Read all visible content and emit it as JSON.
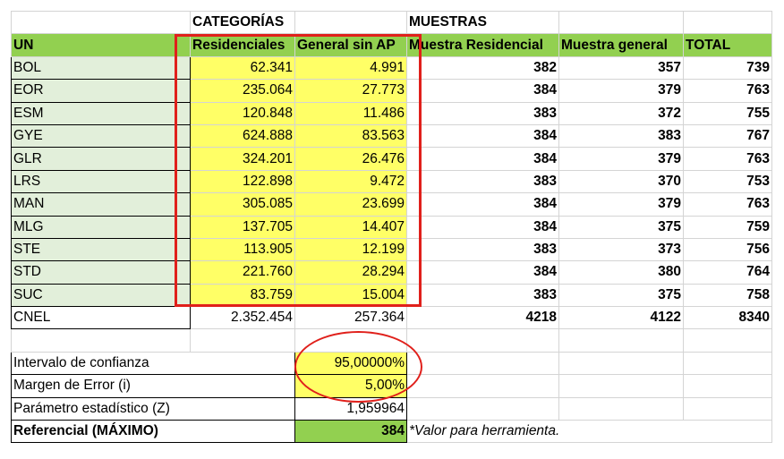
{
  "header": {
    "categorias": "CATEGORÍAS",
    "muestras": "MUESTRAS",
    "un": "UN",
    "residenciales": "Residenciales",
    "general_sin_ap": "General sin AP",
    "muestra_residencial": "Muestra Residencial",
    "muestra_general": "Muestra general",
    "total": "TOTAL"
  },
  "rows": [
    {
      "un": "BOL",
      "res": "62.341",
      "gen": "4.991",
      "mres": "382",
      "mgen": "357",
      "total": "739"
    },
    {
      "un": "EOR",
      "res": "235.064",
      "gen": "27.773",
      "mres": "384",
      "mgen": "379",
      "total": "763"
    },
    {
      "un": "ESM",
      "res": "120.848",
      "gen": "11.486",
      "mres": "383",
      "mgen": "372",
      "total": "755"
    },
    {
      "un": "GYE",
      "res": "624.888",
      "gen": "83.563",
      "mres": "384",
      "mgen": "383",
      "total": "767"
    },
    {
      "un": "GLR",
      "res": "324.201",
      "gen": "26.476",
      "mres": "384",
      "mgen": "379",
      "total": "763"
    },
    {
      "un": "LRS",
      "res": "122.898",
      "gen": "9.472",
      "mres": "383",
      "mgen": "370",
      "total": "753"
    },
    {
      "un": "MAN",
      "res": "305.085",
      "gen": "23.699",
      "mres": "384",
      "mgen": "379",
      "total": "763"
    },
    {
      "un": "MLG",
      "res": "137.705",
      "gen": "14.407",
      "mres": "384",
      "mgen": "375",
      "total": "759"
    },
    {
      "un": "STE",
      "res": "113.905",
      "gen": "12.199",
      "mres": "383",
      "mgen": "373",
      "total": "756"
    },
    {
      "un": "STD",
      "res": "221.760",
      "gen": "28.294",
      "mres": "384",
      "mgen": "380",
      "total": "764"
    },
    {
      "un": "SUC",
      "res": "83.759",
      "gen": "15.004",
      "mres": "383",
      "mgen": "375",
      "total": "758"
    }
  ],
  "cnel": {
    "un": "CNEL",
    "res": "2.352.454",
    "gen": "257.364",
    "mres": "4218",
    "mgen": "4122",
    "total": "8340"
  },
  "params": {
    "intervalo_label": "Intervalo de confianza",
    "intervalo_value": "95,00000%",
    "margen_label": "Margen de Error (i)",
    "margen_value": "5,00%",
    "parametro_label": "Parámetro estadístico (Z)",
    "parametro_value": "1,959964",
    "referencial_label": "Referencial (MÁXIMO)",
    "referencial_value": "384",
    "note": "*Valor para herramienta."
  },
  "colors": {
    "green": "#92d050",
    "yellow": "#ffff66",
    "un_fill": "#e2efda",
    "annotation_red": "#e0201b"
  }
}
